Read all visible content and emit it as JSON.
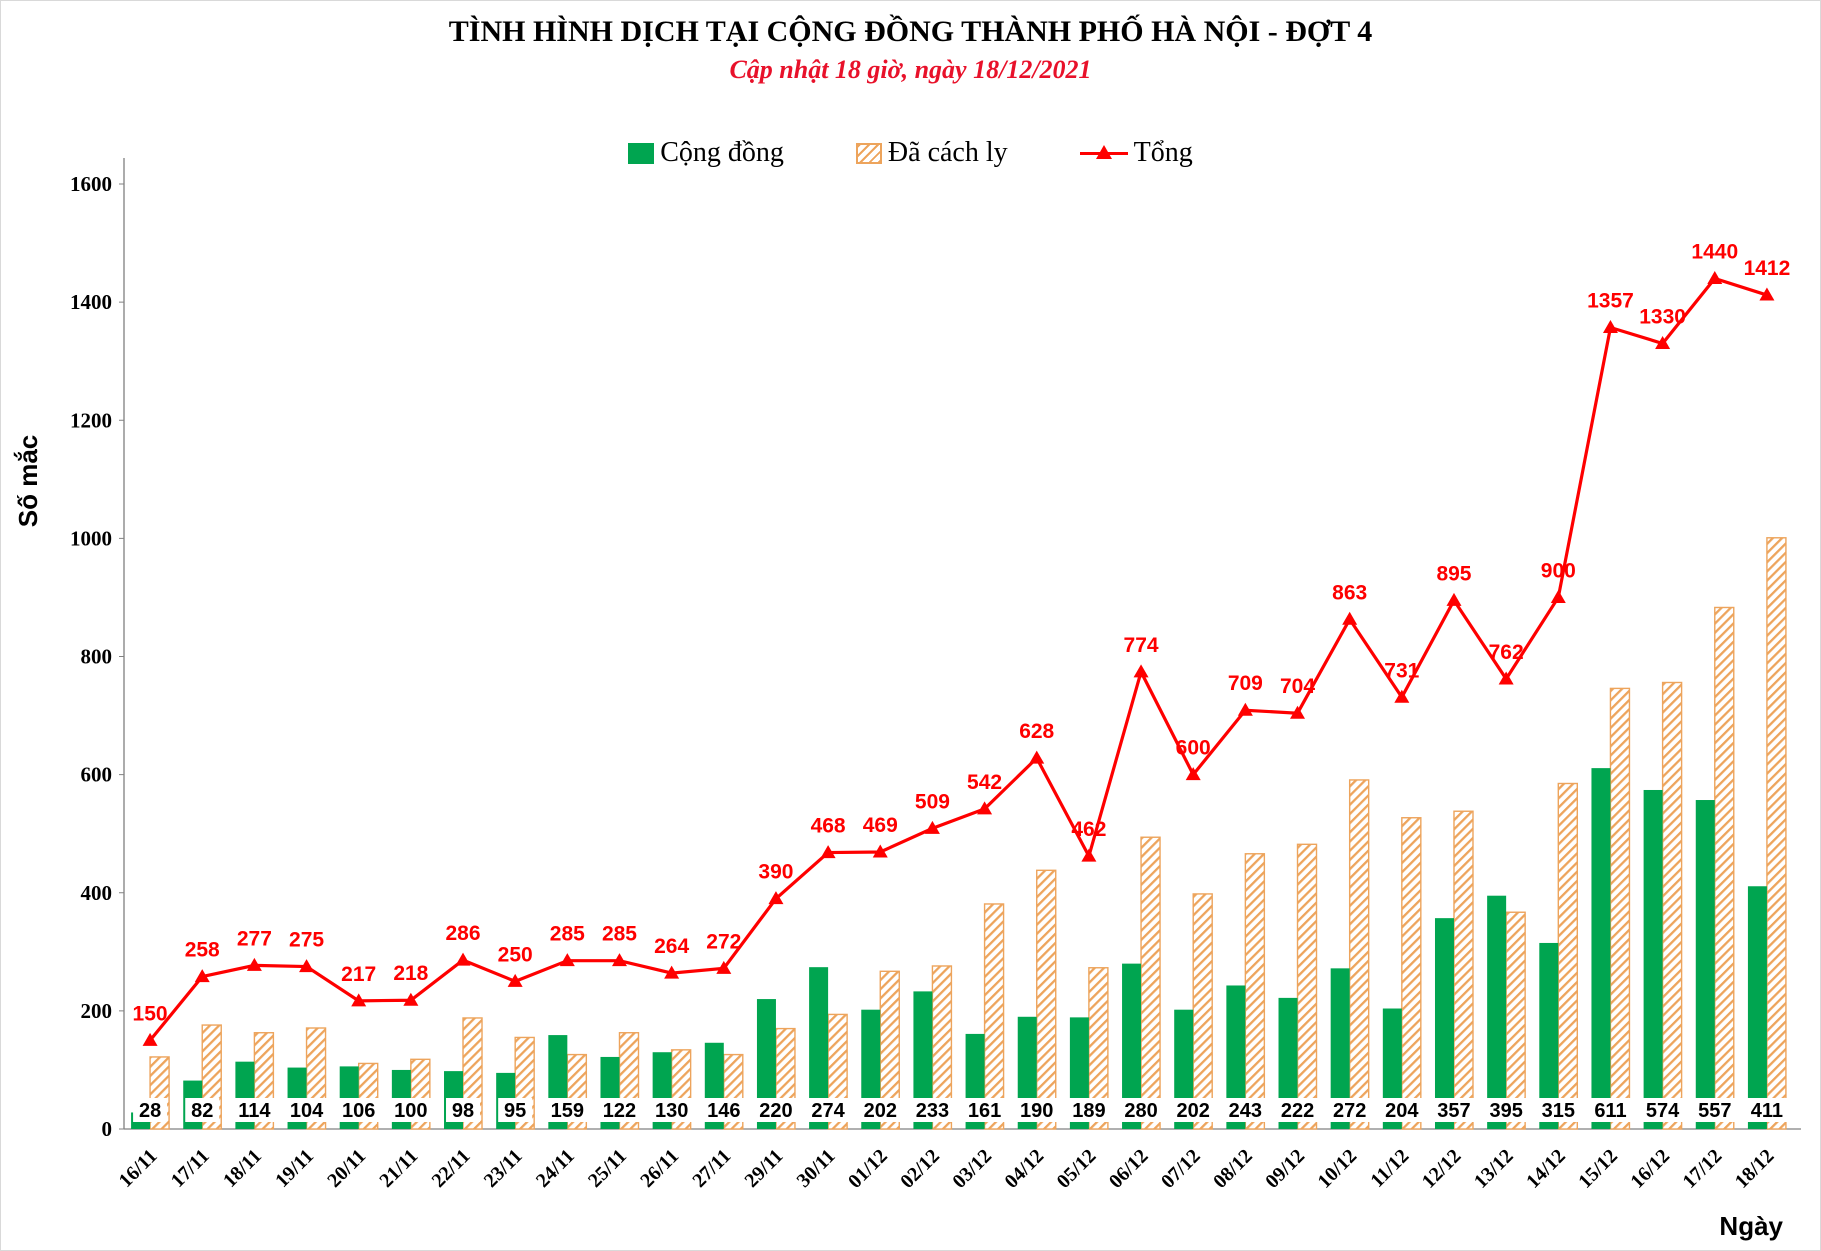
{
  "header": {
    "title": "TÌNH HÌNH DỊCH TẠI CỘNG ĐỒNG THÀNH PHỐ HÀ NỘI - ĐỢT 4",
    "subtitle": "Cập nhật 18 giờ, ngày 18/12/2021"
  },
  "colors": {
    "community_green": "#00a550",
    "quarantine_orange": "#eda45c",
    "total_red": "#fe0000",
    "subtitle_red": "#e8112a",
    "axis_gray": "#808080",
    "label_black": "#000000",
    "label_box_white": "#ffffff"
  },
  "chart_data": {
    "type": "bar",
    "subtype": "clustered bars with line overlay",
    "title": "TÌNH HÌNH DỊCH TẠI CỘNG ĐỒNG THÀNH PHỐ HÀ NỘI - ĐỢT 4",
    "subtitle": "Cập nhật 18 giờ, ngày 18/12/2021",
    "xlabel": "Ngày",
    "ylabel": "Số mắc",
    "ylim": [
      0,
      1600
    ],
    "ytick_step": 200,
    "grid": false,
    "legend_position": "top",
    "categories": [
      "16/11",
      "17/11",
      "18/11",
      "19/11",
      "20/11",
      "21/11",
      "22/11",
      "23/11",
      "24/11",
      "25/11",
      "26/11",
      "27/11",
      "29/11",
      "30/11",
      "01/12",
      "02/12",
      "03/12",
      "04/12",
      "05/12",
      "06/12",
      "07/12",
      "08/12",
      "09/12",
      "10/12",
      "11/12",
      "12/12",
      "13/12",
      "14/12",
      "15/12",
      "16/12",
      "17/12",
      "18/12"
    ],
    "series": [
      {
        "name": "Cộng đồng",
        "type": "bar",
        "style": "solid-green",
        "labels_shown": true,
        "values": [
          28,
          82,
          114,
          104,
          106,
          100,
          98,
          95,
          159,
          122,
          130,
          146,
          220,
          274,
          202,
          233,
          161,
          190,
          189,
          280,
          202,
          243,
          222,
          272,
          204,
          357,
          395,
          315,
          611,
          574,
          557,
          411
        ]
      },
      {
        "name": "Đã cách ly",
        "type": "bar",
        "style": "hatched-orange",
        "labels_shown": false,
        "values": [
          122,
          176,
          163,
          171,
          111,
          118,
          188,
          155,
          126,
          163,
          134,
          126,
          170,
          194,
          267,
          276,
          381,
          438,
          273,
          494,
          398,
          466,
          482,
          591,
          527,
          538,
          367,
          585,
          746,
          756,
          883,
          1001
        ]
      },
      {
        "name": "Tổng",
        "type": "line",
        "style": "red-line-triangle-markers",
        "labels_shown": true,
        "values": [
          150,
          258,
          277,
          275,
          217,
          218,
          286,
          250,
          285,
          285,
          264,
          272,
          390,
          468,
          469,
          509,
          542,
          628,
          462,
          774,
          600,
          709,
          704,
          863,
          731,
          895,
          762,
          900,
          1357,
          1330,
          1440,
          1412
        ]
      }
    ]
  }
}
